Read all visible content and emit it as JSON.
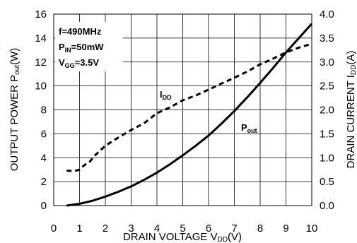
{
  "chart_data": {
    "type": "line",
    "xlabel": "DRAIN VOLTAGE V",
    "xlabel_sub": "DD",
    "xlabel_unit": "(V)",
    "ylabel_left": "OUTPUT POWER P",
    "ylabel_left_sub": "out",
    "ylabel_left_unit": "(W)",
    "ylabel_right": "DRAIN CURRENT I",
    "ylabel_right_sub": "DD",
    "ylabel_right_unit": "(A)",
    "xlim": [
      0,
      10
    ],
    "ylim_left": [
      0,
      16
    ],
    "ylim_right": [
      0,
      4
    ],
    "x_ticks": [
      "0",
      "1",
      "2",
      "3",
      "4",
      "5",
      "6",
      "7",
      "8",
      "9",
      "10"
    ],
    "y_left_ticks": [
      "0",
      "2",
      "4",
      "6",
      "8",
      "10",
      "12",
      "14",
      "16"
    ],
    "y_right_ticks": [
      "0.0",
      "0.5",
      "1.0",
      "1.5",
      "2.0",
      "2.5",
      "3.0",
      "3.5",
      "4.0"
    ],
    "grid": true,
    "annotations": {
      "line1": "f=490MHz",
      "line2_main": "P",
      "line2_sub": "IN",
      "line2_rest": "=50mW",
      "line3_main": "V",
      "line3_sub": "GG",
      "line3_rest": "=3.5V"
    },
    "series": [
      {
        "name": "P",
        "name_sub": "out",
        "axis": "left",
        "style": "solid",
        "x": [
          0.5,
          1,
          1.5,
          2,
          2.5,
          3,
          3.5,
          4,
          4.5,
          5,
          5.5,
          6,
          6.5,
          7,
          7.5,
          8,
          8.5,
          9,
          9.5,
          10
        ],
        "y": [
          0.0,
          0.15,
          0.4,
          0.75,
          1.15,
          1.6,
          2.15,
          2.75,
          3.45,
          4.2,
          5.0,
          5.85,
          6.85,
          7.9,
          9.05,
          10.25,
          11.5,
          12.8,
          14.0,
          15.2
        ]
      },
      {
        "name": "I",
        "name_sub": "DD",
        "axis": "right",
        "style": "dashed",
        "x": [
          0.5,
          0.8,
          1.0,
          1.2,
          1.4,
          1.6,
          2.0,
          2.5,
          3.0,
          3.5,
          4.0,
          4.5,
          5.0,
          5.5,
          6.0,
          6.5,
          7.0,
          7.5,
          8.0,
          8.5,
          9.0,
          9.5,
          10.0
        ],
        "y": [
          0.73,
          0.72,
          0.75,
          0.85,
          0.92,
          1.05,
          1.25,
          1.42,
          1.58,
          1.72,
          1.93,
          2.05,
          2.2,
          2.3,
          2.42,
          2.55,
          2.67,
          2.8,
          2.95,
          3.07,
          3.2,
          3.3,
          3.38
        ]
      }
    ]
  }
}
